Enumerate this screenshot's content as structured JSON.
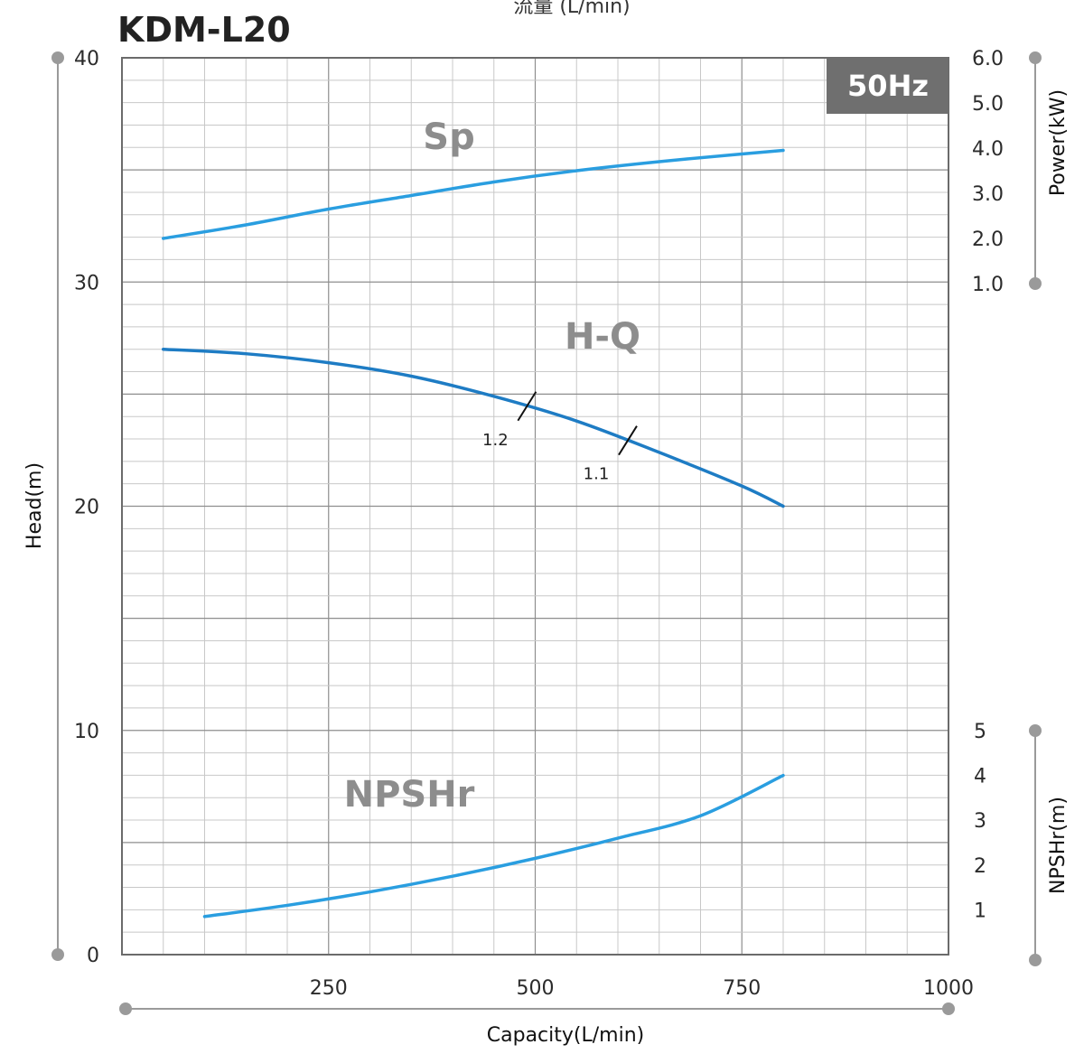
{
  "chart_data": {
    "type": "line",
    "title": "KDM-L20",
    "top_label": "流量 (L/min)",
    "badge": "50Hz",
    "xlabel": "Capacity(L/min)",
    "xlim": [
      0,
      1000
    ],
    "x_ticks": [
      "250",
      "500",
      "750",
      "1000"
    ],
    "y_left": {
      "label": "Head(m)",
      "lim": [
        0,
        40
      ],
      "ticks": [
        "0",
        "10",
        "20",
        "30",
        "40"
      ]
    },
    "y_right_power": {
      "label": "Power(kW)",
      "lim": [
        1.0,
        6.0
      ],
      "ticks": [
        "1.0",
        "2.0",
        "3.0",
        "4.0",
        "5.0",
        "6.0"
      ]
    },
    "y_right_npshr": {
      "label": "NPSHr(m)",
      "lim": [
        0,
        5
      ],
      "ticks": [
        "1",
        "2",
        "3",
        "4",
        "5"
      ]
    },
    "series": [
      {
        "name": "Sp",
        "axis": "power",
        "color": "#2a9ee0",
        "x": [
          50,
          150,
          250,
          350,
          450,
          550,
          650,
          750,
          800
        ],
        "y": [
          2.0,
          2.3,
          2.65,
          2.95,
          3.25,
          3.5,
          3.7,
          3.87,
          3.95
        ]
      },
      {
        "name": "H-Q",
        "axis": "head",
        "color": "#1e7cc4",
        "x": [
          50,
          150,
          250,
          350,
          450,
          550,
          650,
          750,
          800
        ],
        "y": [
          27.0,
          26.8,
          26.4,
          25.8,
          24.9,
          23.8,
          22.4,
          20.9,
          20.0
        ]
      },
      {
        "name": "NPSHr",
        "axis": "npshr",
        "color": "#2a9ee0",
        "x": [
          100,
          200,
          300,
          400,
          500,
          600,
          700,
          800
        ],
        "y": [
          0.85,
          1.1,
          1.4,
          1.75,
          2.15,
          2.6,
          3.1,
          4.0
        ]
      }
    ],
    "annotations": [
      {
        "text": "1.2",
        "x": 490
      },
      {
        "text": "1.1",
        "x": 612
      }
    ],
    "grid": true
  }
}
